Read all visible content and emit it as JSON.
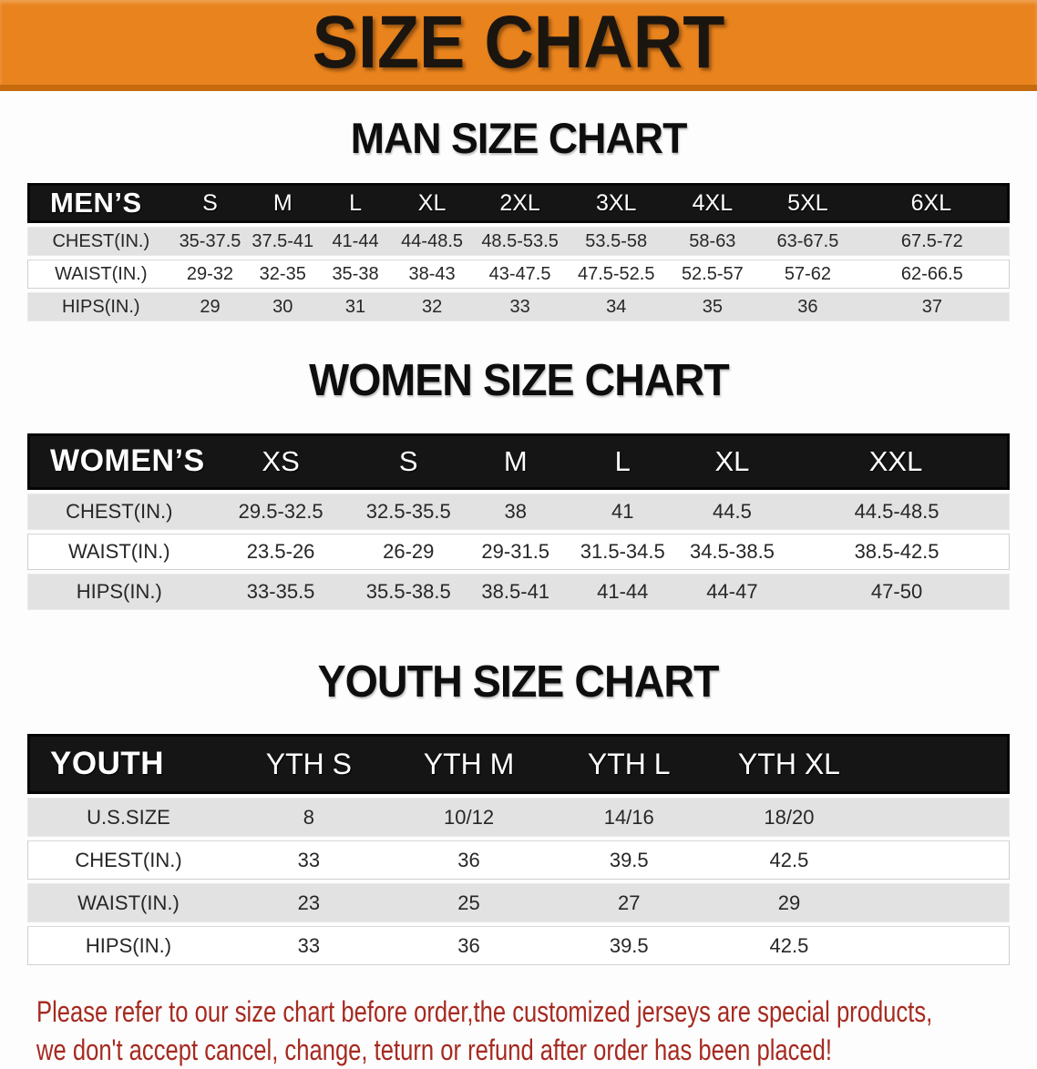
{
  "banner": {
    "title": "SIZE CHART"
  },
  "colors": {
    "banner_orange": "#e9831d",
    "banner_edge": "#c66a0e",
    "header_black": "#151515",
    "row_gray": "#e2e2e2",
    "body_text": "#272727",
    "disclaimer_red": "#a62a20"
  },
  "sections": [
    {
      "id": "men",
      "heading": "MAN SIZE CHART",
      "table": {
        "label": "MEN’S",
        "columns": [
          "S",
          "M",
          "L",
          "XL",
          "2XL",
          "3XL",
          "4XL",
          "5XL",
          "6XL"
        ],
        "rows": [
          {
            "label": "CHEST(IN.)",
            "values": [
              "35-37.5",
              "37.5-41",
              "41-44",
              "44-48.5",
              "48.5-53.5",
              "53.5-58",
              "58-63",
              "63-67.5",
              "67.5-72"
            ]
          },
          {
            "label": "WAIST(IN.)",
            "values": [
              "29-32",
              "32-35",
              "35-38",
              "38-43",
              "43-47.5",
              "47.5-52.5",
              "52.5-57",
              "57-62",
              "62-66.5"
            ]
          },
          {
            "label": "HIPS(IN.)",
            "values": [
              "29",
              "30",
              "31",
              "32",
              "33",
              "34",
              "35",
              "36",
              "37"
            ]
          }
        ]
      }
    },
    {
      "id": "women",
      "heading": "WOMEN SIZE CHART",
      "table": {
        "label": "WOMEN’S",
        "columns": [
          "XS",
          "S",
          "M",
          "L",
          "XL",
          "XXL"
        ],
        "rows": [
          {
            "label": "CHEST(IN.)",
            "values": [
              "29.5-32.5",
              "32.5-35.5",
              "38",
              "41",
              "44.5",
              "44.5-48.5"
            ]
          },
          {
            "label": "WAIST(IN.)",
            "values": [
              "23.5-26",
              "26-29",
              "29-31.5",
              "31.5-34.5",
              "34.5-38.5",
              "38.5-42.5"
            ]
          },
          {
            "label": "HIPS(IN.)",
            "values": [
              "33-35.5",
              "35.5-38.5",
              "38.5-41",
              "41-44",
              "44-47",
              "47-50"
            ]
          }
        ]
      }
    },
    {
      "id": "youth",
      "heading": "YOUTH SIZE CHART",
      "table": {
        "label": "YOUTH",
        "columns": [
          "YTH S",
          "YTH M",
          "YTH L",
          "YTH XL"
        ],
        "rows": [
          {
            "label": "U.S.SIZE",
            "values": [
              "8",
              "10/12",
              "14/16",
              "18/20"
            ]
          },
          {
            "label": "CHEST(IN.)",
            "values": [
              "33",
              "36",
              "39.5",
              "42.5"
            ]
          },
          {
            "label": "WAIST(IN.)",
            "values": [
              "23",
              "25",
              "27",
              "29"
            ]
          },
          {
            "label": "HIPS(IN.)",
            "values": [
              "33",
              "36",
              "39.5",
              "42.5"
            ]
          }
        ]
      }
    }
  ],
  "disclaimer": {
    "line1": "Please refer to our size chart before order,the customized jerseys are special products,",
    "line2": "we don't accept cancel, change, teturn or refund after order has been placed!"
  }
}
